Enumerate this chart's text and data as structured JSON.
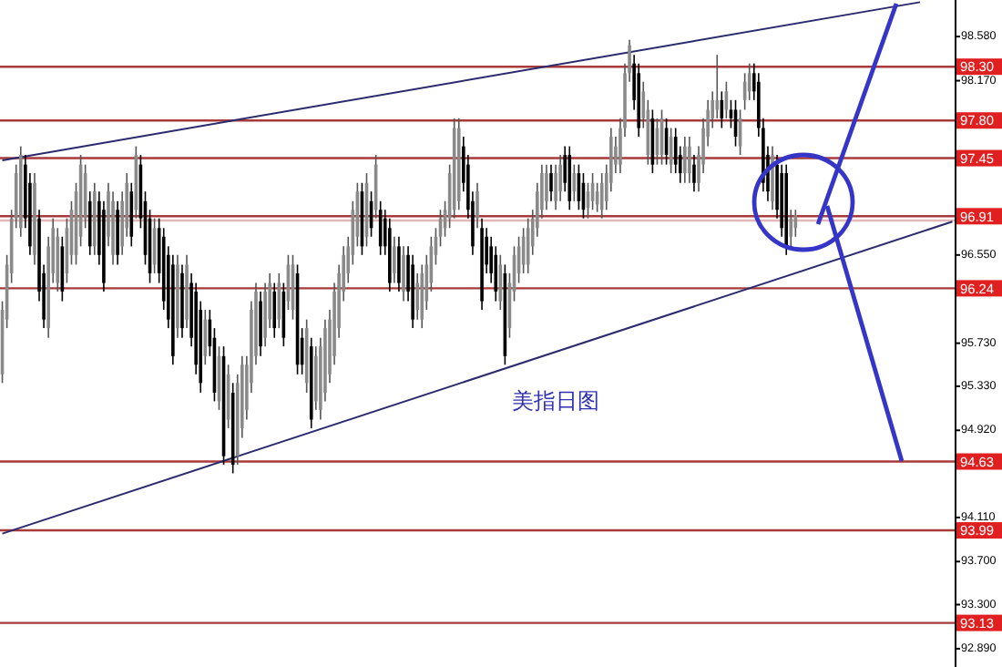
{
  "chart_data": {
    "type": "candlestick",
    "annotations": [
      "美指日图"
    ],
    "tick_labels": "y",
    "categories": [
      null,
      null,
      null,
      null,
      null,
      null,
      null,
      null,
      null,
      null,
      null,
      null,
      null,
      null,
      null,
      null,
      null,
      null,
      null,
      null,
      null,
      null,
      null,
      null,
      null,
      null,
      null,
      null,
      null,
      null,
      null,
      null,
      null,
      null,
      null,
      null,
      null,
      null,
      null,
      null,
      null,
      null,
      null,
      null,
      null,
      null,
      null,
      null,
      null,
      null,
      null,
      null,
      null,
      null,
      null,
      null,
      null,
      null,
      null,
      null,
      null,
      null,
      null,
      null,
      null,
      null,
      null,
      null,
      null,
      null,
      null,
      null,
      null,
      null,
      null,
      null,
      null,
      null,
      null,
      null,
      null,
      null,
      null,
      null,
      null,
      null,
      null,
      null,
      null,
      null,
      null,
      null,
      null,
      null,
      null,
      null,
      null,
      null,
      null,
      null,
      null,
      null,
      null,
      null,
      null,
      null,
      null,
      null,
      null,
      null,
      null,
      null,
      null,
      null,
      null,
      null,
      null,
      null,
      null,
      null,
      null,
      null,
      null,
      null,
      null,
      null,
      null,
      null,
      null,
      null,
      null,
      null,
      null,
      null,
      null,
      null,
      null,
      null,
      null,
      null,
      null,
      null,
      null,
      null,
      null,
      null,
      null,
      null,
      null,
      null,
      null,
      null,
      null,
      null,
      null,
      null,
      null,
      null,
      null,
      null,
      null,
      null,
      null,
      null,
      null,
      null,
      null,
      null,
      null,
      null,
      null,
      null,
      null,
      null,
      null,
      null,
      null,
      null,
      null,
      null,
      null,
      null,
      null,
      null,
      null,
      null,
      null,
      null,
      null,
      null,
      null,
      null,
      null,
      null,
      null,
      null,
      null,
      null,
      null,
      null,
      null,
      null,
      null,
      null,
      null,
      null,
      null
    ],
    "ohlc": [
      [
        95.44,
        96.12,
        95.36,
        96.04
      ],
      [
        95.95,
        96.55,
        95.87,
        96.46
      ],
      [
        96.38,
        96.97,
        96.29,
        96.89
      ],
      [
        96.89,
        97.39,
        96.8,
        97.31
      ],
      [
        96.8,
        97.56,
        96.72,
        97.48
      ],
      [
        97.39,
        97.48,
        96.8,
        96.89
      ],
      [
        97.22,
        97.31,
        96.55,
        96.63
      ],
      [
        96.55,
        97.31,
        96.46,
        97.22
      ],
      [
        96.89,
        96.97,
        96.12,
        96.21
      ],
      [
        96.38,
        96.46,
        95.87,
        95.95
      ],
      [
        95.87,
        96.72,
        95.78,
        96.63
      ],
      [
        96.38,
        96.89,
        96.29,
        96.8
      ],
      [
        96.29,
        96.8,
        96.21,
        96.72
      ],
      [
        96.63,
        96.72,
        96.12,
        96.21
      ],
      [
        96.38,
        96.89,
        96.29,
        96.8
      ],
      [
        96.55,
        97.05,
        96.46,
        96.97
      ],
      [
        96.55,
        97.22,
        96.46,
        97.14
      ],
      [
        96.72,
        97.48,
        96.63,
        97.39
      ],
      [
        96.89,
        97.39,
        96.8,
        97.31
      ],
      [
        97.05,
        97.14,
        96.55,
        96.63
      ],
      [
        96.63,
        97.22,
        96.55,
        97.14
      ],
      [
        97.05,
        97.14,
        96.46,
        96.55
      ],
      [
        96.97,
        97.05,
        96.21,
        96.29
      ],
      [
        96.72,
        97.22,
        96.63,
        97.14
      ],
      [
        96.55,
        97.14,
        96.46,
        97.05
      ],
      [
        96.97,
        97.05,
        96.46,
        96.55
      ],
      [
        96.63,
        97.14,
        96.55,
        97.05
      ],
      [
        96.8,
        97.31,
        96.72,
        97.22
      ],
      [
        97.14,
        97.22,
        96.63,
        96.72
      ],
      [
        96.97,
        97.56,
        96.89,
        97.48
      ],
      [
        97.39,
        97.48,
        96.8,
        96.89
      ],
      [
        97.05,
        97.14,
        96.46,
        96.55
      ],
      [
        96.89,
        96.97,
        96.29,
        96.38
      ],
      [
        96.46,
        96.89,
        96.38,
        96.8
      ],
      [
        96.8,
        96.89,
        96.29,
        96.38
      ],
      [
        96.72,
        96.8,
        96.04,
        96.12
      ],
      [
        96.55,
        96.63,
        95.87,
        95.95
      ],
      [
        96.46,
        96.55,
        95.53,
        95.61
      ],
      [
        95.87,
        96.55,
        95.78,
        96.46
      ],
      [
        96.38,
        96.46,
        95.78,
        95.87
      ],
      [
        95.95,
        96.55,
        95.87,
        96.46
      ],
      [
        96.29,
        96.38,
        95.7,
        95.78
      ],
      [
        96.21,
        96.29,
        95.44,
        95.53
      ],
      [
        96.04,
        96.12,
        95.27,
        95.36
      ],
      [
        95.61,
        96.04,
        95.53,
        95.95
      ],
      [
        95.95,
        96.04,
        95.61,
        95.7
      ],
      [
        95.78,
        95.87,
        95.19,
        95.27
      ],
      [
        95.19,
        95.7,
        95.11,
        95.61
      ],
      [
        95.61,
        95.7,
        94.6,
        94.68
      ],
      [
        95.02,
        95.53,
        94.94,
        95.44
      ],
      [
        95.27,
        95.36,
        94.52,
        94.6
      ],
      [
        94.68,
        95.44,
        94.6,
        95.36
      ],
      [
        94.94,
        95.61,
        94.85,
        95.53
      ],
      [
        95.11,
        95.61,
        95.02,
        95.53
      ],
      [
        95.36,
        96.12,
        95.27,
        96.04
      ],
      [
        95.61,
        96.29,
        95.53,
        96.21
      ],
      [
        96.12,
        96.21,
        95.61,
        95.7
      ],
      [
        95.78,
        96.29,
        95.7,
        96.21
      ],
      [
        95.95,
        96.38,
        95.87,
        96.29
      ],
      [
        96.21,
        96.29,
        95.78,
        95.87
      ],
      [
        95.95,
        96.38,
        95.87,
        96.29
      ],
      [
        96.21,
        96.29,
        95.7,
        95.78
      ],
      [
        96.12,
        96.55,
        96.04,
        96.46
      ],
      [
        96.04,
        96.55,
        95.95,
        96.46
      ],
      [
        96.38,
        96.46,
        95.44,
        95.53
      ],
      [
        95.78,
        95.87,
        95.44,
        95.53
      ],
      [
        95.36,
        95.95,
        95.27,
        95.87
      ],
      [
        95.7,
        95.78,
        94.94,
        95.02
      ],
      [
        95.19,
        95.7,
        95.11,
        95.61
      ],
      [
        95.11,
        95.78,
        95.02,
        95.7
      ],
      [
        95.27,
        95.95,
        95.19,
        95.87
      ],
      [
        95.44,
        96.04,
        95.36,
        95.95
      ],
      [
        95.61,
        96.29,
        95.53,
        96.21
      ],
      [
        95.87,
        96.46,
        95.78,
        96.38
      ],
      [
        96.21,
        96.63,
        96.12,
        96.55
      ],
      [
        96.38,
        96.72,
        96.29,
        96.63
      ],
      [
        96.55,
        97.05,
        96.46,
        96.97
      ],
      [
        96.72,
        97.22,
        96.63,
        97.14
      ],
      [
        97.14,
        97.22,
        96.55,
        96.63
      ],
      [
        96.72,
        97.31,
        96.63,
        97.22
      ],
      [
        97.05,
        97.14,
        96.72,
        96.8
      ],
      [
        96.97,
        97.48,
        96.89,
        97.39
      ],
      [
        96.97,
        97.05,
        96.55,
        96.63
      ],
      [
        96.89,
        96.97,
        96.55,
        96.63
      ],
      [
        96.8,
        96.89,
        96.21,
        96.29
      ],
      [
        96.38,
        96.72,
        96.29,
        96.63
      ],
      [
        96.63,
        96.72,
        96.21,
        96.29
      ],
      [
        96.21,
        96.63,
        96.12,
        96.55
      ],
      [
        96.55,
        96.63,
        96.12,
        96.21
      ],
      [
        96.46,
        96.55,
        95.87,
        95.95
      ],
      [
        96.04,
        96.38,
        95.95,
        96.29
      ],
      [
        95.95,
        96.46,
        95.87,
        96.38
      ],
      [
        96.12,
        96.55,
        96.04,
        96.46
      ],
      [
        96.29,
        96.72,
        96.21,
        96.63
      ],
      [
        96.55,
        96.8,
        96.46,
        96.72
      ],
      [
        96.72,
        96.97,
        96.63,
        96.89
      ],
      [
        96.8,
        97.05,
        96.72,
        96.97
      ],
      [
        96.89,
        97.39,
        96.8,
        97.31
      ],
      [
        96.97,
        97.82,
        96.89,
        97.73
      ],
      [
        97.05,
        97.82,
        96.97,
        97.73
      ],
      [
        97.56,
        97.65,
        97.14,
        97.22
      ],
      [
        97.39,
        97.48,
        96.89,
        96.97
      ],
      [
        97.05,
        97.14,
        96.55,
        96.63
      ],
      [
        96.89,
        97.22,
        96.8,
        97.14
      ],
      [
        96.8,
        96.89,
        96.04,
        96.12
      ],
      [
        96.72,
        96.8,
        96.38,
        96.46
      ],
      [
        96.63,
        96.72,
        96.29,
        96.38
      ],
      [
        96.55,
        96.63,
        96.12,
        96.21
      ],
      [
        96.12,
        96.55,
        96.04,
        96.46
      ],
      [
        96.38,
        96.46,
        95.53,
        95.61
      ],
      [
        95.87,
        96.38,
        95.78,
        96.29
      ],
      [
        96.21,
        96.63,
        96.12,
        96.55
      ],
      [
        96.38,
        96.72,
        96.29,
        96.63
      ],
      [
        96.46,
        96.8,
        96.38,
        96.72
      ],
      [
        96.46,
        96.89,
        96.38,
        96.8
      ],
      [
        96.63,
        96.97,
        96.55,
        96.89
      ],
      [
        96.8,
        97.22,
        96.72,
        97.14
      ],
      [
        96.97,
        97.39,
        96.89,
        97.31
      ],
      [
        97.05,
        97.39,
        96.97,
        97.31
      ],
      [
        97.31,
        97.39,
        97.05,
        97.14
      ],
      [
        97.05,
        97.39,
        96.97,
        97.31
      ],
      [
        97.14,
        97.48,
        97.05,
        97.39
      ],
      [
        97.48,
        97.56,
        97.14,
        97.22
      ],
      [
        97.48,
        97.56,
        96.97,
        97.05
      ],
      [
        97.14,
        97.39,
        97.05,
        97.31
      ],
      [
        97.31,
        97.39,
        96.97,
        97.05
      ],
      [
        97.22,
        97.31,
        96.89,
        96.97
      ],
      [
        96.99,
        97.22,
        96.89,
        97.14
      ],
      [
        97.05,
        97.31,
        96.97,
        97.22
      ],
      [
        97.02,
        97.22,
        96.95,
        97.14
      ],
      [
        96.97,
        97.31,
        96.89,
        97.22
      ],
      [
        97.05,
        97.39,
        96.97,
        97.31
      ],
      [
        97.22,
        97.73,
        97.14,
        97.65
      ],
      [
        97.39,
        97.65,
        97.31,
        97.56
      ],
      [
        97.39,
        97.82,
        97.31,
        97.73
      ],
      [
        97.73,
        98.33,
        97.65,
        98.24
      ],
      [
        98.24,
        98.55,
        98.16,
        98.5
      ],
      [
        98.33,
        98.41,
        97.9,
        97.99
      ],
      [
        98.24,
        98.33,
        97.65,
        97.73
      ],
      [
        97.82,
        98.16,
        97.73,
        98.07
      ],
      [
        97.48,
        97.99,
        97.39,
        97.9
      ],
      [
        97.82,
        97.9,
        97.31,
        97.39
      ],
      [
        97.48,
        97.82,
        97.39,
        97.73
      ],
      [
        97.48,
        97.9,
        97.39,
        97.82
      ],
      [
        97.73,
        97.82,
        97.39,
        97.48
      ],
      [
        97.39,
        97.73,
        97.31,
        97.65
      ],
      [
        97.65,
        97.73,
        97.31,
        97.39
      ],
      [
        97.48,
        97.56,
        97.22,
        97.31
      ],
      [
        97.31,
        97.65,
        97.22,
        97.56
      ],
      [
        97.31,
        97.65,
        97.22,
        97.56
      ],
      [
        97.39,
        97.48,
        97.14,
        97.22
      ],
      [
        97.22,
        97.56,
        97.14,
        97.48
      ],
      [
        97.39,
        97.82,
        97.31,
        97.73
      ],
      [
        97.65,
        97.99,
        97.56,
        97.9
      ],
      [
        97.82,
        98.07,
        97.73,
        97.99
      ],
      [
        97.9,
        98.41,
        97.82,
        97.99
      ],
      [
        97.99,
        98.07,
        97.73,
        97.82
      ],
      [
        97.9,
        98.16,
        97.82,
        98.07
      ],
      [
        97.9,
        97.99,
        97.73,
        97.82
      ],
      [
        97.9,
        97.99,
        97.56,
        97.65
      ],
      [
        97.56,
        97.9,
        97.48,
        97.82
      ],
      [
        97.99,
        98.24,
        97.9,
        98.16
      ],
      [
        98.07,
        98.33,
        97.99,
        98.24
      ],
      [
        98.24,
        98.33,
        97.99,
        98.07
      ],
      [
        98.16,
        98.24,
        97.65,
        97.73
      ],
      [
        97.73,
        97.82,
        97.14,
        97.22
      ],
      [
        97.48,
        97.56,
        97.05,
        97.14
      ],
      [
        97.05,
        97.56,
        96.97,
        97.48
      ],
      [
        97.39,
        97.48,
        96.89,
        96.97
      ],
      [
        97.31,
        97.39,
        96.72,
        96.8
      ],
      [
        97.31,
        97.39,
        96.55,
        96.63
      ],
      [
        96.72,
        96.97,
        96.63,
        96.89
      ],
      [
        96.8,
        96.97,
        96.72,
        96.92
      ],
      null,
      null,
      null,
      null,
      null,
      null,
      null,
      null,
      null,
      null,
      null,
      null,
      null,
      null,
      null,
      null,
      null,
      null,
      null,
      null,
      null,
      null,
      null,
      null,
      null,
      null,
      null,
      null,
      null,
      null,
      null,
      null,
      null,
      null
    ],
    "series": [
      {
        "type": "line",
        "color": "#2a2a6e",
        "values": [
          97.43,
          null,
          null,
          null,
          null,
          null,
          null,
          null,
          null,
          null,
          null,
          null,
          null,
          null,
          null,
          null,
          null,
          null,
          null,
          null,
          null,
          null,
          null,
          null,
          null,
          null,
          null,
          null,
          null,
          null,
          null,
          null,
          null,
          null,
          null,
          null,
          null,
          null,
          null,
          null,
          null,
          null,
          null,
          null,
          null,
          null,
          null,
          null,
          null,
          null,
          null,
          null,
          null,
          null,
          null,
          null,
          null,
          null,
          null,
          null,
          null,
          null,
          null,
          null,
          null,
          null,
          null,
          null,
          null,
          null,
          null,
          null,
          null,
          null,
          null,
          null,
          null,
          null,
          null,
          null,
          null,
          null,
          null,
          null,
          null,
          null,
          null,
          null,
          null,
          null,
          null,
          null,
          null,
          null,
          null,
          null,
          null,
          null,
          null,
          null,
          null,
          null,
          null,
          null,
          null,
          null,
          null,
          null,
          null,
          null,
          null,
          null,
          null,
          null,
          null,
          null,
          null,
          null,
          null,
          null,
          null,
          null,
          null,
          null,
          null,
          null,
          null,
          null,
          null,
          null,
          null,
          null,
          null,
          null,
          null,
          null,
          null,
          null,
          null,
          null,
          null,
          null,
          null,
          null,
          null,
          null,
          null,
          null,
          null,
          null,
          null,
          null,
          null,
          null,
          null,
          null,
          null,
          null,
          null,
          null,
          null,
          null,
          null,
          null,
          null,
          null,
          null,
          null,
          null,
          null,
          null,
          null,
          null,
          null,
          null,
          null,
          null,
          null,
          null,
          null,
          null,
          null,
          null,
          null,
          null,
          null,
          null,
          null,
          null,
          null,
          null,
          null,
          null,
          null,
          null,
          null,
          null,
          null,
          null,
          98.9,
          null,
          null,
          null,
          null,
          null,
          null,
          null
        ]
      },
      {
        "type": "line",
        "color": "#2a2a6e",
        "values": [
          93.96,
          null,
          null,
          null,
          null,
          null,
          null,
          null,
          null,
          null,
          null,
          null,
          null,
          null,
          null,
          null,
          null,
          null,
          null,
          null,
          null,
          null,
          null,
          null,
          null,
          null,
          null,
          null,
          null,
          null,
          null,
          null,
          null,
          null,
          null,
          null,
          null,
          null,
          null,
          null,
          null,
          null,
          null,
          null,
          null,
          null,
          null,
          null,
          null,
          null,
          null,
          null,
          null,
          null,
          null,
          null,
          null,
          null,
          null,
          null,
          null,
          null,
          null,
          null,
          null,
          null,
          null,
          null,
          null,
          null,
          null,
          null,
          null,
          null,
          null,
          null,
          null,
          null,
          null,
          null,
          null,
          null,
          null,
          null,
          null,
          null,
          null,
          null,
          null,
          null,
          null,
          null,
          null,
          null,
          null,
          null,
          null,
          null,
          null,
          null,
          null,
          null,
          null,
          null,
          null,
          null,
          null,
          null,
          null,
          null,
          null,
          null,
          null,
          null,
          null,
          null,
          null,
          null,
          null,
          null,
          null,
          null,
          null,
          null,
          null,
          null,
          null,
          null,
          null,
          null,
          null,
          null,
          null,
          null,
          null,
          null,
          null,
          null,
          null,
          null,
          null,
          null,
          null,
          null,
          null,
          null,
          null,
          null,
          null,
          null,
          null,
          null,
          null,
          null,
          null,
          null,
          null,
          null,
          null,
          null,
          null,
          null,
          null,
          null,
          null,
          null,
          null,
          null,
          null,
          null,
          null,
          null,
          null,
          null,
          null,
          null,
          null,
          null,
          null,
          null,
          null,
          null,
          null,
          null,
          null,
          null,
          null,
          null,
          null,
          null,
          null,
          null,
          null,
          null,
          null,
          null,
          null,
          null,
          null,
          null,
          null,
          null,
          null,
          null,
          null,
          null,
          96.86
        ]
      }
    ],
    "ylim": [
      92.72,
      98.92
    ],
    "yticks": [
      {
        "value": 92.89,
        "label": "92.890"
      },
      {
        "value": 93.3,
        "label": "93.300"
      },
      {
        "value": 93.7,
        "label": "93.700"
      },
      {
        "value": 94.11,
        "label": "94.110"
      },
      {
        "value": 94.92,
        "label": "94.920"
      },
      {
        "value": 95.33,
        "label": "95.330"
      },
      {
        "value": 95.73,
        "label": "95.730"
      },
      {
        "value": 96.55,
        "label": "96.550"
      },
      {
        "value": 98.17,
        "label": "98.170"
      },
      {
        "value": 98.58,
        "label": "98.580"
      }
    ],
    "ref_lines": [
      {
        "axis": "y",
        "value": 98.3,
        "label": "98.30",
        "color": "#a83a3a"
      },
      {
        "axis": "y",
        "value": 97.8,
        "label": "97.80",
        "color": "#a83a3a"
      },
      {
        "axis": "y",
        "value": 97.45,
        "label": "97.45",
        "color": "#a83a3a"
      },
      {
        "axis": "y",
        "value": 96.91,
        "label": "96.91",
        "color": "#a83a3a"
      },
      {
        "axis": "y",
        "value": 96.87,
        "label": null,
        "color": "#e0b8b8"
      },
      {
        "axis": "y",
        "value": 96.24,
        "label": "96.24",
        "color": "#a83a3a"
      },
      {
        "axis": "y",
        "value": 94.63,
        "label": "94.63",
        "color": "#a83a3a"
      },
      {
        "axis": "y",
        "value": 93.99,
        "label": "93.99",
        "color": "#a83a3a"
      },
      {
        "axis": "y",
        "value": 93.13,
        "label": "93.13",
        "color": "#a83a3a"
      }
    ],
    "grid": false
  }
}
